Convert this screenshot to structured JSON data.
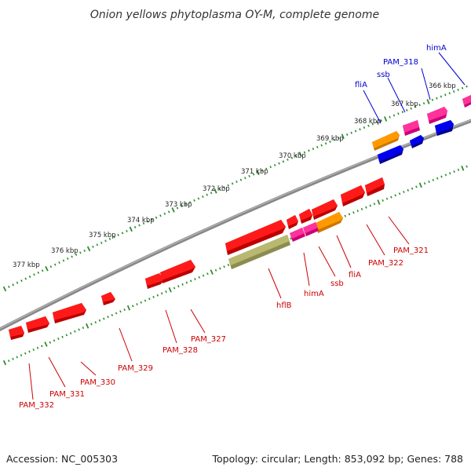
{
  "title": "Onion yellows phytoplasma OY-M, complete genome",
  "footer": {
    "accession": "Accession: NC_005303",
    "summary": "Topology: circular; Length: 853,092 bp; Genes: 788"
  },
  "colors": {
    "backbone": "#8c8c8c",
    "tick": "#2e8b2e",
    "label_top": "#0000cc",
    "label_bottom": "#cc0000",
    "red_gene": "#ff1a1a",
    "magenta_gene": "#ff3399",
    "orange_gene": "#ff9900",
    "blue_gene": "#0000ee",
    "olive_gene": "#b8b870"
  },
  "scale_labels": [
    "366 kbp",
    "367 kbp",
    "368 kbp",
    "369 kbp",
    "370 kbp",
    "371 kbp",
    "372 kbp",
    "373 kbp",
    "374 kbp",
    "375 kbp",
    "376 kbp",
    "377 kbp"
  ],
  "top_labels": [
    "himA",
    "PAM_318",
    "ssb",
    "fliA"
  ],
  "bottom_labels": [
    "PAM_321",
    "PAM_322",
    "fliA",
    "ssb",
    "himA",
    "hflB",
    "PAM_327",
    "PAM_328",
    "PAM_329",
    "PAM_330",
    "PAM_331",
    "PAM_332"
  ]
}
